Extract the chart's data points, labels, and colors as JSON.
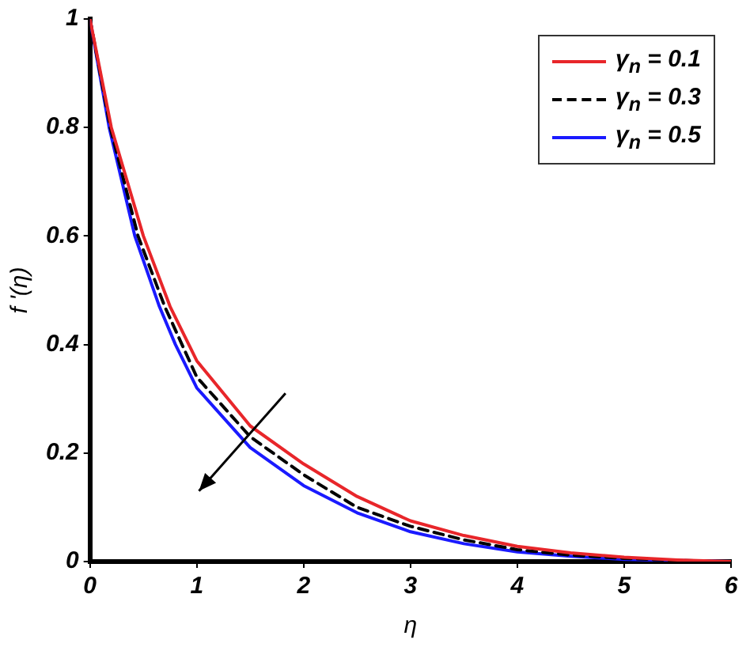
{
  "chart_data": {
    "type": "line",
    "xlabel": "η",
    "ylabel": "f '(η)",
    "xlim": [
      0,
      6
    ],
    "xticks": [
      0,
      1,
      2,
      3,
      4,
      5,
      6
    ],
    "ylim": [
      0,
      1
    ],
    "yticks": [
      0,
      0.2,
      0.4,
      0.6,
      0.8,
      1
    ],
    "grid": false,
    "legend": "top right",
    "marker": "none",
    "series": [
      {
        "name": "γ$_{n}$ = 0.1",
        "color": "#e8262a",
        "line_style": "solid",
        "x": [
          0,
          0.2,
          0.5,
          0.75,
          1,
          1.5,
          2,
          2.5,
          3,
          3.5,
          4,
          4.5,
          5,
          5.5,
          6
        ],
        "values": [
          1,
          0.8,
          0.6,
          0.47,
          0.37,
          0.25,
          0.18,
          0.12,
          0.075,
          0.048,
          0.028,
          0.016,
          0.008,
          0.003,
          0
        ]
      },
      {
        "name": "γ$_{n}$ = 0.3",
        "color": "#000000",
        "line_style": "dashed",
        "x": [
          0,
          0.19,
          0.45,
          0.7,
          1,
          1.5,
          2,
          2.5,
          3,
          3.5,
          4,
          4.5,
          5,
          5.5,
          6
        ],
        "values": [
          1,
          0.8,
          0.6,
          0.47,
          0.34,
          0.23,
          0.16,
          0.1,
          0.065,
          0.04,
          0.022,
          0.012,
          0.006,
          0.002,
          0
        ]
      },
      {
        "name": "γ$_{n}$ = 0.5",
        "color": "#1a1aff",
        "line_style": "solid",
        "x": [
          0,
          0.18,
          0.42,
          0.65,
          0.8,
          1,
          1.5,
          2,
          2.5,
          3,
          3.5,
          4,
          4.5,
          5,
          5.5,
          6
        ],
        "values": [
          1,
          0.8,
          0.6,
          0.47,
          0.4,
          0.32,
          0.21,
          0.14,
          0.09,
          0.055,
          0.033,
          0.018,
          0.01,
          0.004,
          null,
          0
        ]
      }
    ]
  }
}
